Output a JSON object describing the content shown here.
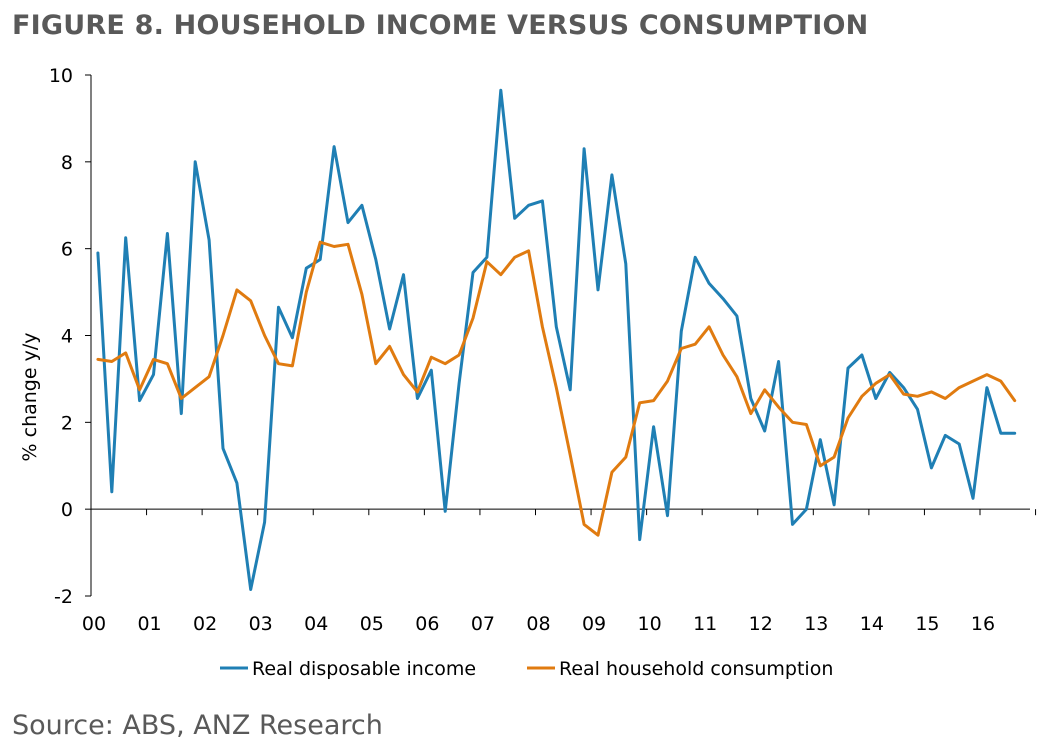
{
  "figure_title": "FIGURE 8. HOUSEHOLD INCOME VERSUS CONSUMPTION",
  "source": "Source: ABS, ANZ Research",
  "colors": {
    "income": "#1f7fb4",
    "consumption": "#e07b10",
    "title": "#595959",
    "axis": "#000000"
  },
  "chart_data": {
    "type": "line",
    "title": "FIGURE 8. HOUSEHOLD INCOME VERSUS CONSUMPTION",
    "xlabel": "",
    "ylabel": "% change y/y",
    "ylim": [
      -2,
      10
    ],
    "yticks": [
      -2,
      0,
      2,
      4,
      6,
      8,
      10
    ],
    "x_start_year": 2000,
    "x_step_years": 0.25,
    "xticks": [
      {
        "year": 2000,
        "label": "00"
      },
      {
        "year": 2001,
        "label": "01"
      },
      {
        "year": 2002,
        "label": "02"
      },
      {
        "year": 2003,
        "label": "03"
      },
      {
        "year": 2004,
        "label": "04"
      },
      {
        "year": 2005,
        "label": "05"
      },
      {
        "year": 2006,
        "label": "06"
      },
      {
        "year": 2007,
        "label": "07"
      },
      {
        "year": 2008,
        "label": "08"
      },
      {
        "year": 2009,
        "label": "09"
      },
      {
        "year": 2010,
        "label": "10"
      },
      {
        "year": 2011,
        "label": "11"
      },
      {
        "year": 2012,
        "label": "12"
      },
      {
        "year": 2013,
        "label": "13"
      },
      {
        "year": 2014,
        "label": "14"
      },
      {
        "year": 2015,
        "label": "15"
      },
      {
        "year": 2016,
        "label": "16"
      }
    ],
    "x_range": [
      2000,
      2016.9
    ],
    "legend_position": "bottom",
    "series": [
      {
        "name": "Real disposable income",
        "color": "#1f7fb4",
        "values": [
          5.9,
          0.4,
          6.25,
          2.5,
          3.1,
          6.35,
          2.2,
          8.0,
          6.2,
          1.4,
          0.6,
          -1.85,
          -0.3,
          4.65,
          3.95,
          5.55,
          5.75,
          8.35,
          6.6,
          7.0,
          5.75,
          4.15,
          5.4,
          2.55,
          3.2,
          -0.05,
          2.9,
          5.45,
          5.8,
          9.65,
          6.7,
          7.0,
          7.1,
          4.2,
          2.75,
          8.3,
          5.05,
          7.7,
          5.65,
          -0.7,
          1.9,
          -0.15,
          4.1,
          5.8,
          5.2,
          4.85,
          4.45,
          2.55,
          1.8,
          3.4,
          -0.35,
          0.0,
          1.6,
          0.1,
          3.25,
          3.55,
          2.55,
          3.15,
          2.8,
          2.3,
          0.95,
          1.7,
          1.5,
          0.25,
          2.8,
          1.75,
          1.75
        ]
      },
      {
        "name": "Real household consumption",
        "color": "#e07b10",
        "values": [
          3.45,
          3.4,
          3.6,
          2.75,
          3.45,
          3.35,
          2.55,
          2.8,
          3.05,
          4.0,
          5.05,
          4.8,
          4.0,
          3.35,
          3.3,
          5.0,
          6.15,
          6.05,
          6.1,
          4.95,
          3.35,
          3.75,
          3.1,
          2.7,
          3.5,
          3.35,
          3.55,
          4.4,
          5.7,
          5.4,
          5.8,
          5.95,
          4.2,
          2.8,
          1.25,
          -0.35,
          -0.6,
          0.85,
          1.2,
          2.45,
          2.5,
          2.95,
          3.7,
          3.8,
          4.2,
          3.55,
          3.05,
          2.2,
          2.75,
          2.35,
          2.0,
          1.95,
          1.0,
          1.2,
          2.1,
          2.6,
          2.9,
          3.1,
          2.65,
          2.6,
          2.7,
          2.55,
          2.8,
          2.95,
          3.1,
          2.95,
          2.5
        ]
      }
    ]
  }
}
